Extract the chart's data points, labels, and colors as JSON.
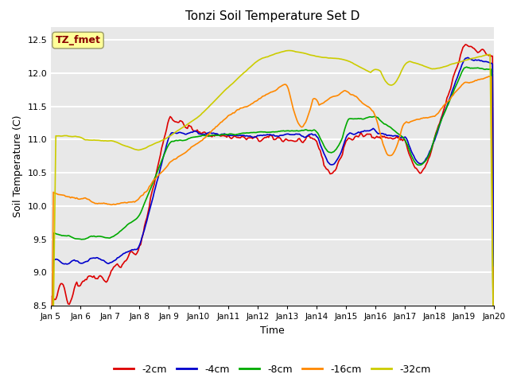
{
  "title": "Tonzi Soil Temperature Set D",
  "xlabel": "Time",
  "ylabel": "Soil Temperature (C)",
  "ylim": [
    8.5,
    12.7
  ],
  "xlim": [
    0,
    360
  ],
  "background_color": "#e8e8e8",
  "grid_color": "white",
  "annotation_text": "TZ_fmet",
  "annotation_color": "#8b0000",
  "annotation_bg": "#ffff99",
  "legend_labels": [
    "-2cm",
    "-4cm",
    "-8cm",
    "-16cm",
    "-32cm"
  ],
  "legend_colors": [
    "#dd0000",
    "#0000cc",
    "#00aa00",
    "#ff8800",
    "#cccc00"
  ],
  "num_points": 361,
  "tick_labels": [
    "Jan 5",
    "Jan 6",
    "Jan 7",
    "Jan 8",
    "Jan 9",
    "Jan 10",
    "Jan 11",
    "Jan 12",
    "Jan 13",
    "Jan 14",
    "Jan 15",
    "Jan 16",
    "Jan 17",
    "Jan 18",
    "Jan 19",
    "Jan 20"
  ],
  "tick_positions": [
    0,
    24,
    48,
    72,
    96,
    120,
    144,
    168,
    192,
    216,
    240,
    264,
    288,
    312,
    336,
    360
  ],
  "yticks": [
    8.5,
    9.0,
    9.5,
    10.0,
    10.5,
    11.0,
    11.5,
    12.0,
    12.5
  ]
}
